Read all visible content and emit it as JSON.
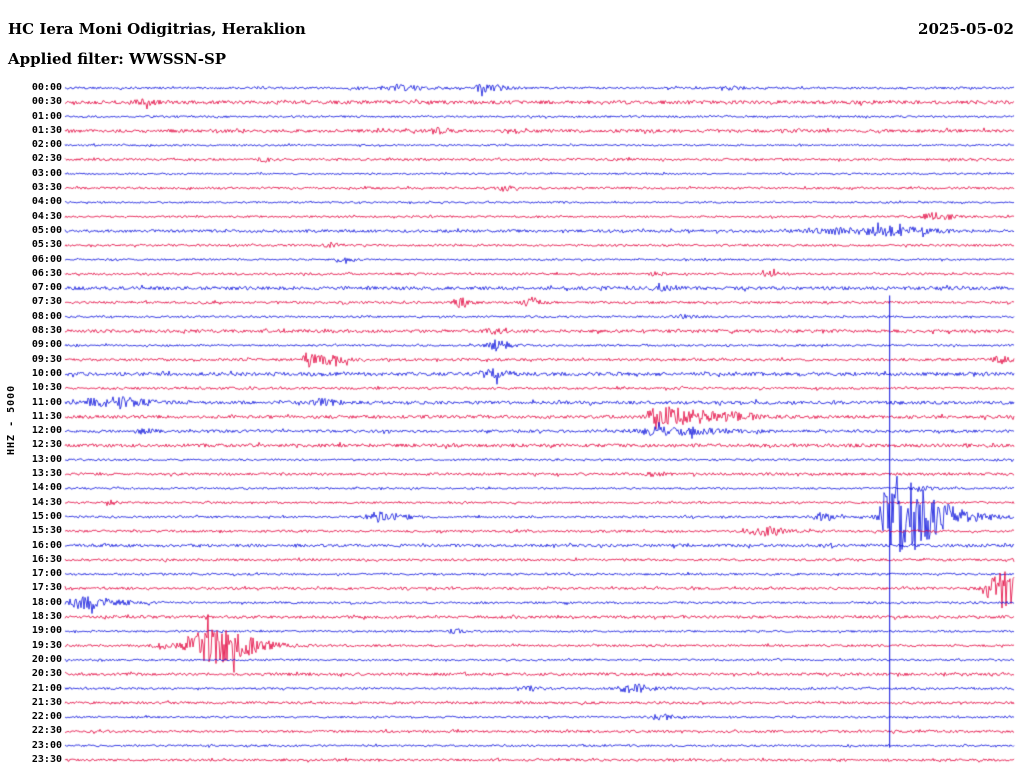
{
  "header": {
    "station_title": "HC Iera Moni Odigitrias, Heraklion",
    "date": "2025-05-02",
    "filter_label": "Applied filter: WWSSN-SP"
  },
  "chart_data": {
    "type": "line",
    "title": "HC Iera Moni Odigitrias, Heraklion",
    "date": "2025-05-02",
    "filter": "WWSSN-SP",
    "channel": "HHZ - 5000",
    "trace_color_even": "#0a10dc",
    "trace_color_odd": "#e2003c",
    "row_minutes": 30,
    "overflow_line": {
      "x": 0.869,
      "from_row": 15,
      "to_row": 46
    },
    "rows": [
      {
        "t": "00:00",
        "amp": 1.1,
        "events": [
          [
            0.3,
            2,
            4,
            2
          ],
          [
            0.35,
            3,
            6,
            3
          ],
          [
            0.44,
            4,
            5,
            3
          ],
          [
            0.7,
            2,
            4,
            2
          ]
        ]
      },
      {
        "t": "00:30",
        "amp": 1.8,
        "events": [
          [
            0.08,
            2,
            6,
            2
          ]
        ]
      },
      {
        "t": "01:00",
        "amp": 1.0,
        "events": []
      },
      {
        "t": "01:30",
        "amp": 1.6,
        "events": [
          [
            0.39,
            2.5,
            3,
            2
          ],
          [
            0.47,
            2,
            4,
            2
          ]
        ]
      },
      {
        "t": "02:00",
        "amp": 0.9,
        "events": []
      },
      {
        "t": "02:30",
        "amp": 1.2,
        "events": [
          [
            0.21,
            2,
            4,
            2
          ]
        ]
      },
      {
        "t": "03:00",
        "amp": 0.9,
        "events": []
      },
      {
        "t": "03:30",
        "amp": 1.1,
        "events": [
          [
            0.46,
            2.5,
            4,
            2
          ]
        ]
      },
      {
        "t": "04:00",
        "amp": 0.9,
        "events": []
      },
      {
        "t": "04:30",
        "amp": 1.0,
        "events": [
          [
            0.915,
            3.5,
            8,
            2
          ]
        ]
      },
      {
        "t": "05:00",
        "amp": 1.4,
        "events": [
          [
            0.82,
            2.5,
            25,
            2
          ],
          [
            0.87,
            2.5,
            15,
            2
          ]
        ]
      },
      {
        "t": "05:30",
        "amp": 1.1,
        "events": [
          [
            0.28,
            2,
            4,
            2
          ]
        ]
      },
      {
        "t": "06:00",
        "amp": 0.9,
        "events": [
          [
            0.29,
            2,
            4,
            2
          ]
        ]
      },
      {
        "t": "06:30",
        "amp": 1.1,
        "events": [
          [
            0.62,
            2,
            4,
            2
          ],
          [
            0.74,
            2.5,
            4,
            2
          ]
        ]
      },
      {
        "t": "07:00",
        "amp": 1.7,
        "events": [
          [
            0.63,
            2,
            6,
            2
          ]
        ]
      },
      {
        "t": "07:30",
        "amp": 1.2,
        "events": [
          [
            0.416,
            5.5,
            4,
            2
          ],
          [
            0.49,
            4.5,
            5,
            2
          ]
        ]
      },
      {
        "t": "08:00",
        "amp": 1.0,
        "events": [
          [
            0.65,
            2,
            5,
            2
          ]
        ]
      },
      {
        "t": "08:30",
        "amp": 1.6,
        "events": [
          [
            0.45,
            2,
            5,
            2
          ]
        ]
      },
      {
        "t": "09:00",
        "amp": 1.0,
        "events": [
          [
            0.452,
            5,
            5,
            2.5
          ]
        ]
      },
      {
        "t": "09:30",
        "amp": 1.3,
        "events": [
          [
            0.258,
            4.5,
            6,
            2
          ],
          [
            0.283,
            4.5,
            6,
            2
          ],
          [
            0.985,
            3.5,
            5,
            2
          ]
        ]
      },
      {
        "t": "10:00",
        "amp": 1.8,
        "events": [
          [
            0.448,
            4.5,
            5,
            2.5
          ]
        ]
      },
      {
        "t": "10:30",
        "amp": 1.2,
        "events": []
      },
      {
        "t": "11:00",
        "amp": 1.7,
        "events": [
          [
            0.032,
            3.5,
            8,
            3
          ],
          [
            0.06,
            3,
            8,
            3
          ],
          [
            0.27,
            3,
            6,
            2
          ]
        ]
      },
      {
        "t": "11:30",
        "amp": 1.6,
        "events": [
          [
            0.622,
            9,
            6,
            8
          ],
          [
            0.71,
            2.5,
            6,
            2
          ]
        ]
      },
      {
        "t": "12:00",
        "amp": 1.4,
        "events": [
          [
            0.08,
            2,
            5,
            2
          ],
          [
            0.627,
            4,
            15,
            3
          ]
        ]
      },
      {
        "t": "12:30",
        "amp": 1.7,
        "events": []
      },
      {
        "t": "13:00",
        "amp": 1.0,
        "events": []
      },
      {
        "t": "13:30",
        "amp": 1.3,
        "events": [
          [
            0.62,
            2,
            5,
            2
          ]
        ]
      },
      {
        "t": "14:00",
        "amp": 1.0,
        "events": [
          [
            0.9,
            2.5,
            5,
            2
          ]
        ]
      },
      {
        "t": "14:30",
        "amp": 1.0,
        "events": [
          [
            0.047,
            3,
            3,
            2
          ]
        ]
      },
      {
        "t": "15:00",
        "amp": 1.1,
        "events": [
          [
            0.33,
            4.5,
            8,
            2.5
          ],
          [
            0.795,
            3.5,
            6,
            2
          ],
          [
            0.869,
            42,
            6,
            5
          ],
          [
            0.905,
            7,
            10,
            4
          ]
        ]
      },
      {
        "t": "15:30",
        "amp": 1.2,
        "events": [
          [
            0.732,
            4.5,
            8,
            2.5
          ]
        ]
      },
      {
        "t": "16:00",
        "amp": 1.5,
        "events": []
      },
      {
        "t": "16:30",
        "amp": 1.2,
        "events": []
      },
      {
        "t": "17:00",
        "amp": 1.1,
        "events": []
      },
      {
        "t": "17:30",
        "amp": 1.2,
        "events": [
          [
            0.975,
            8,
            6,
            2
          ],
          [
            0.99,
            15,
            8,
            1.5
          ]
        ]
      },
      {
        "t": "18:00",
        "amp": 1.1,
        "events": [
          [
            0.012,
            6,
            6,
            5
          ]
        ]
      },
      {
        "t": "18:30",
        "amp": 1.4,
        "events": []
      },
      {
        "t": "19:00",
        "amp": 1.0,
        "events": [
          [
            0.41,
            2,
            4,
            2
          ]
        ]
      },
      {
        "t": "19:30",
        "amp": 1.1,
        "events": [
          [
            0.1,
            3,
            5,
            2
          ],
          [
            0.137,
            13,
            8,
            5
          ],
          [
            0.16,
            6,
            8,
            4
          ]
        ]
      },
      {
        "t": "20:00",
        "amp": 1.0,
        "events": []
      },
      {
        "t": "20:30",
        "amp": 1.4,
        "events": []
      },
      {
        "t": "21:00",
        "amp": 1.1,
        "events": [
          [
            0.49,
            2,
            5,
            2
          ],
          [
            0.595,
            3.5,
            8,
            2.5
          ]
        ]
      },
      {
        "t": "21:30",
        "amp": 1.3,
        "events": []
      },
      {
        "t": "22:00",
        "amp": 1.0,
        "events": [
          [
            0.627,
            2.5,
            6,
            2
          ]
        ]
      },
      {
        "t": "22:30",
        "amp": 1.2,
        "events": []
      },
      {
        "t": "23:00",
        "amp": 1.0,
        "events": []
      },
      {
        "t": "23:30",
        "amp": 1.2,
        "events": []
      }
    ]
  }
}
